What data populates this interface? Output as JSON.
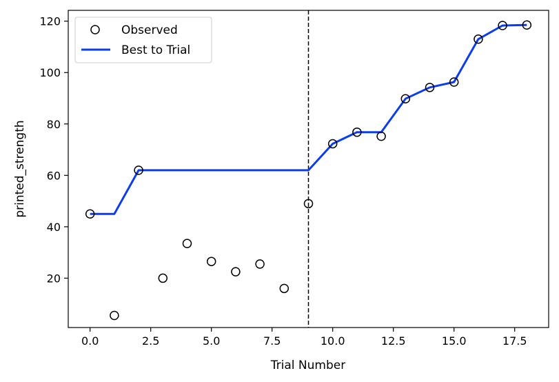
{
  "chart_data": {
    "type": "scatter",
    "xlabel": "Trial Number",
    "ylabel": "printed_strength",
    "xlim": [
      -0.9,
      18.9
    ],
    "ylim": [
      0.8,
      124.2
    ],
    "x_ticks": [
      0.0,
      2.5,
      5.0,
      7.5,
      10.0,
      12.5,
      15.0,
      17.5
    ],
    "x_tick_labels": [
      "0.0",
      "2.5",
      "5.0",
      "7.5",
      "10.0",
      "12.5",
      "15.0",
      "17.5"
    ],
    "y_ticks": [
      20,
      40,
      60,
      80,
      100,
      120
    ],
    "y_tick_labels": [
      "20",
      "40",
      "60",
      "80",
      "100",
      "120"
    ],
    "grid": false,
    "legend_position": "top-left",
    "vertical_line": {
      "x": 9,
      "style": "dashed",
      "color": "#000000"
    },
    "series": [
      {
        "name": "Observed",
        "kind": "scatter",
        "marker": "open-circle",
        "color": "#000000",
        "x": [
          0,
          1,
          2,
          3,
          4,
          5,
          6,
          7,
          8,
          9,
          10,
          11,
          12,
          13,
          14,
          15,
          16,
          17,
          18
        ],
        "y": [
          45.0,
          5.5,
          62.0,
          20.0,
          33.5,
          26.5,
          22.5,
          25.5,
          16.0,
          49.0,
          72.3,
          76.8,
          75.2,
          89.8,
          94.2,
          96.3,
          113.0,
          118.3,
          118.5
        ]
      },
      {
        "name": "Best to Trial",
        "kind": "line",
        "color": "#0a3cf0",
        "x": [
          0,
          1,
          2,
          3,
          4,
          5,
          6,
          7,
          8,
          9,
          10,
          11,
          12,
          13,
          14,
          15,
          16,
          17,
          18
        ],
        "y": [
          45.0,
          45.0,
          62.0,
          62.0,
          62.0,
          62.0,
          62.0,
          62.0,
          62.0,
          62.0,
          72.3,
          76.8,
          76.8,
          89.8,
          94.2,
          96.3,
          113.0,
          118.3,
          118.5
        ]
      }
    ]
  }
}
